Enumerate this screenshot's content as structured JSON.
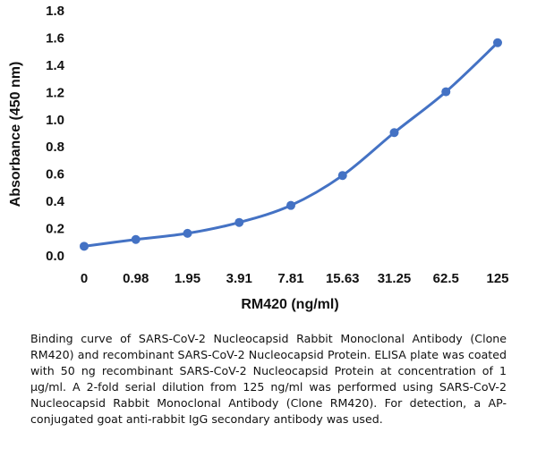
{
  "chart_data": {
    "type": "line",
    "categories": [
      "0",
      "0.98",
      "1.95",
      "3.91",
      "7.81",
      "15.63",
      "31.25",
      "62.5",
      "125"
    ],
    "series": [
      {
        "values": [
          0.07,
          0.12,
          0.165,
          0.245,
          0.37,
          0.59,
          0.905,
          1.205,
          1.565
        ]
      }
    ],
    "xlabel": "RM420 (ng/ml)",
    "ylabel": "Absorbance (450 nm)",
    "ylim": [
      0,
      1.8
    ],
    "yticks": [
      "0.0",
      "0.2",
      "0.4",
      "0.6",
      "0.8",
      "1.0",
      "1.2",
      "1.4",
      "1.6",
      "1.8"
    ],
    "grid": false,
    "line_color": "#4472C4"
  },
  "caption": "Binding curve of SARS-CoV-2 Nucleocapsid Rabbit Monoclonal Antibody (Clone RM420) and recombinant SARS-CoV-2 Nucleocapsid Protein. ELISA plate was coated with 50 ng recombinant SARS-CoV-2 Nucleocapsid Protein at concentration of 1 µg/ml. A 2-fold serial dilution from 125 ng/ml was performed using SARS-CoV-2 Nucleocapsid Rabbit Monoclonal Antibody (Clone RM420). For detection, a AP-conjugated goat anti-rabbit IgG secondary antibody was used."
}
